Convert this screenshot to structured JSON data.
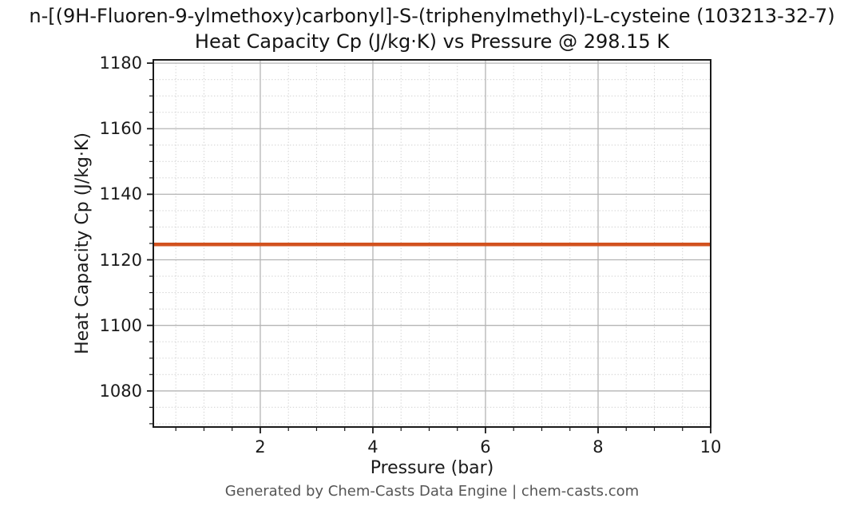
{
  "page": {
    "footer": "Generated by Chem-Casts Data Engine | chem-casts.com"
  },
  "chart_data": {
    "type": "line",
    "title_line1": "n-[(9H-Fluoren-9-ylmethoxy)carbonyl]-S-(triphenylmethyl)-L-cysteine (103213-32-7)",
    "title_line2": "Heat Capacity Cp (J/kg·K) vs Pressure @ 298.15 K",
    "compound_name": "n-[(9H-Fluoren-9-ylmethoxy)carbonyl]-S-(triphenylmethyl)-L-cysteine",
    "cas_number": "103213-32-7",
    "temperature_label": "298.15 K",
    "xlabel": "Pressure (bar)",
    "ylabel": "Heat Capacity Cp (J/kg·K)",
    "xlim": [
      0.1,
      10
    ],
    "ylim": [
      1069,
      1181
    ],
    "x_major_ticks": [
      2,
      4,
      6,
      8,
      10
    ],
    "x_minor_step": 0.5,
    "y_major_ticks": [
      1080,
      1100,
      1120,
      1140,
      1160,
      1180
    ],
    "y_minor_step": 5,
    "grid": {
      "major": true,
      "minor": true,
      "minor_style": "dotted"
    },
    "legend": null,
    "series": [
      {
        "name": "Heat Capacity Cp",
        "color": "#d2521f",
        "x": [
          0.1,
          10
        ],
        "y": [
          1124.7,
          1124.7
        ],
        "constant_value": 1124.7,
        "line_width": 4.5
      }
    ]
  },
  "colors": {
    "background": "#ffffff",
    "line": "#d2521f",
    "grid_major": "#b4b4b4",
    "grid_minor": "#d6d6d6",
    "spine": "#1a1a1a",
    "text": "#1a1a1a",
    "footer_text": "#555555"
  }
}
